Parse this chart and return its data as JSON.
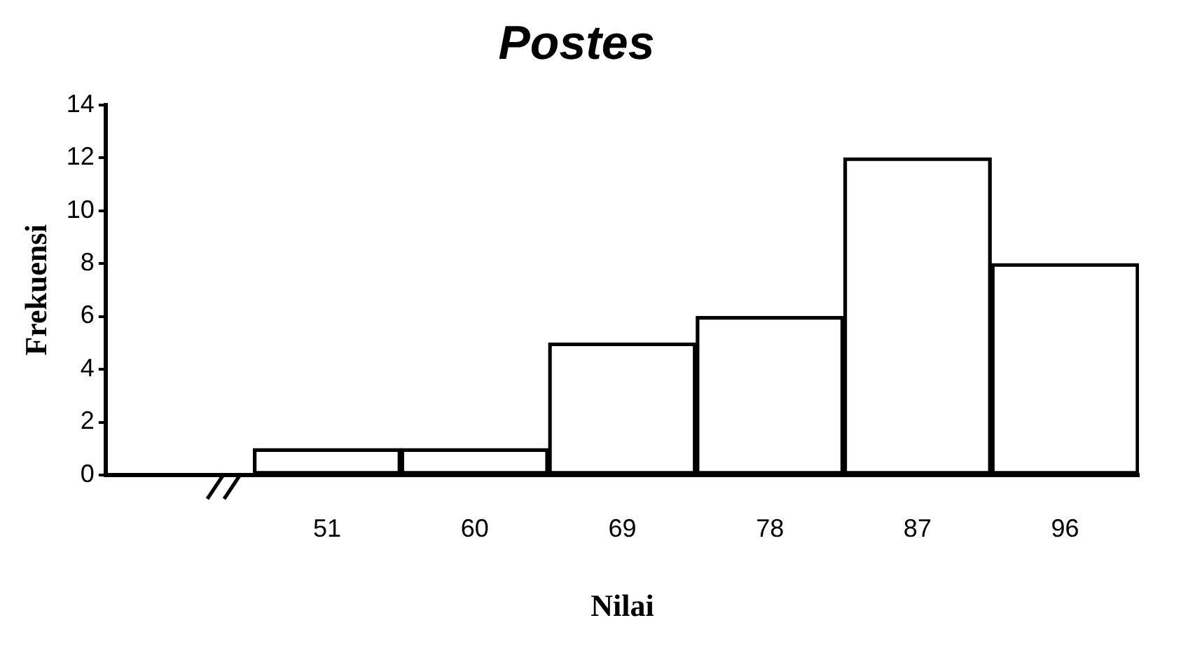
{
  "chart_data": {
    "type": "bar",
    "title": "Postes",
    "xlabel": "Nilai",
    "ylabel": "Frekuensi",
    "categories": [
      "51",
      "60",
      "69",
      "78",
      "87",
      "96"
    ],
    "values": [
      1,
      1,
      5,
      6,
      12,
      8
    ],
    "color": "#000000",
    "ylim": [
      0,
      14
    ],
    "yticks": [
      0,
      2,
      4,
      6,
      8,
      10,
      12,
      14
    ],
    "grid": false,
    "legend": false
  }
}
